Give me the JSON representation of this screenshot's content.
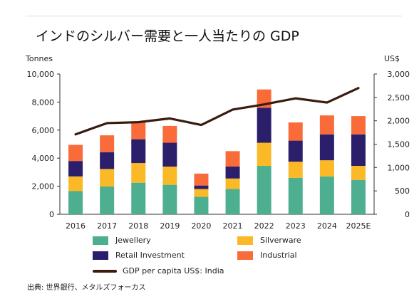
{
  "chart_data": {
    "type": "bar",
    "stacked": true,
    "title": "インドのシルバー需要と一人当たりの GDP",
    "y_left_unit": "Tonnes",
    "y_right_unit": "US$",
    "categories": [
      "2016",
      "2017",
      "2018",
      "2019",
      "2020",
      "2021",
      "2022",
      "2023",
      "2024",
      "2025E"
    ],
    "ylim_left": [
      0,
      10000
    ],
    "ylim_right": [
      0,
      3000
    ],
    "left_ticks": [
      "0",
      "2,000",
      "4,000",
      "6,000",
      "8,000",
      "10,000"
    ],
    "right_ticks": [
      "0",
      "500",
      "1,000",
      "1,500",
      "2,000",
      "2,500",
      "3,000"
    ],
    "series": [
      {
        "name": "Jewellery",
        "color": "#4daf8f",
        "values": [
          1650,
          1980,
          2250,
          2100,
          1250,
          1800,
          3450,
          2600,
          2700,
          2450
        ]
      },
      {
        "name": "Silverware",
        "color": "#fbb827",
        "values": [
          1050,
          1250,
          1400,
          1300,
          550,
          750,
          1650,
          1150,
          1150,
          1000
        ]
      },
      {
        "name": "Retail Investment",
        "color": "#2b1f6b",
        "values": [
          1100,
          1200,
          1700,
          1700,
          250,
          850,
          2500,
          1500,
          1850,
          2250
        ]
      },
      {
        "name": "Industrial",
        "color": "#fa6b3a",
        "values": [
          1150,
          1200,
          1200,
          1200,
          850,
          1100,
          1300,
          1300,
          1350,
          1300
        ]
      }
    ],
    "line": {
      "name": "GDP per capita US$: India",
      "color": "#3a1b10",
      "values": [
        1710,
        1950,
        1970,
        2050,
        1910,
        2240,
        2350,
        2480,
        2390,
        2700
      ]
    },
    "legend_position": "bottom",
    "grid": false
  },
  "source": "出典: 世界銀行、メタルズフォーカス"
}
